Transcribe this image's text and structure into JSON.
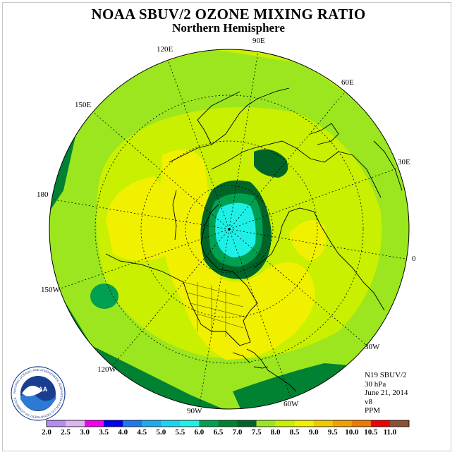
{
  "title": "NOAA SBUV/2 OZONE MIXING RATIO",
  "subtitle": "Northern Hemisphere",
  "longitude_labels": {
    "e90": "90E",
    "e60": "60E",
    "e30": "30E",
    "zero": "0",
    "w30": "30W",
    "w60": "60W",
    "w90": "90W",
    "w120": "120W",
    "w150": "150W",
    "l180": "180",
    "e150": "150E",
    "e120": "120E"
  },
  "info": {
    "satellite": "N19 SBUV/2",
    "level": "30 hPa",
    "date": "June 21, 2014",
    "version": "v8",
    "units": "PPM"
  },
  "logo": {
    "text": "NOAA",
    "ring_text": "NATIONAL OCEANIC AND ATMOSPHERIC ADMINISTRATION U.S. DEPARTMENT OF COMMERCE"
  },
  "colorbar": {
    "ticks": [
      "2.0",
      "2.5",
      "3.0",
      "3.5",
      "4.0",
      "4.5",
      "5.0",
      "5.5",
      "6.0",
      "6.5",
      "7.0",
      "7.5",
      "8.0",
      "8.5",
      "9.0",
      "9.5",
      "10.0",
      "10.5",
      "11.0"
    ],
    "colors": [
      "#b48cf0",
      "#dcb4f0",
      "#f000f0",
      "#0000f0",
      "#1e78f0",
      "#1eaaf0",
      "#1ed2f0",
      "#1ef0e6",
      "#00a050",
      "#008232",
      "#006428",
      "#9be61e",
      "#c8f000",
      "#f0f000",
      "#f0c800",
      "#f0a000",
      "#f07800",
      "#f00000",
      "#8c5032"
    ]
  },
  "field_colors": {
    "lime": "#c8f000",
    "green": "#9be61e",
    "dark": "#008232",
    "darker": "#006428",
    "mid": "#00a050",
    "yellow": "#f0f000",
    "cyan": "#1ef0e6"
  }
}
